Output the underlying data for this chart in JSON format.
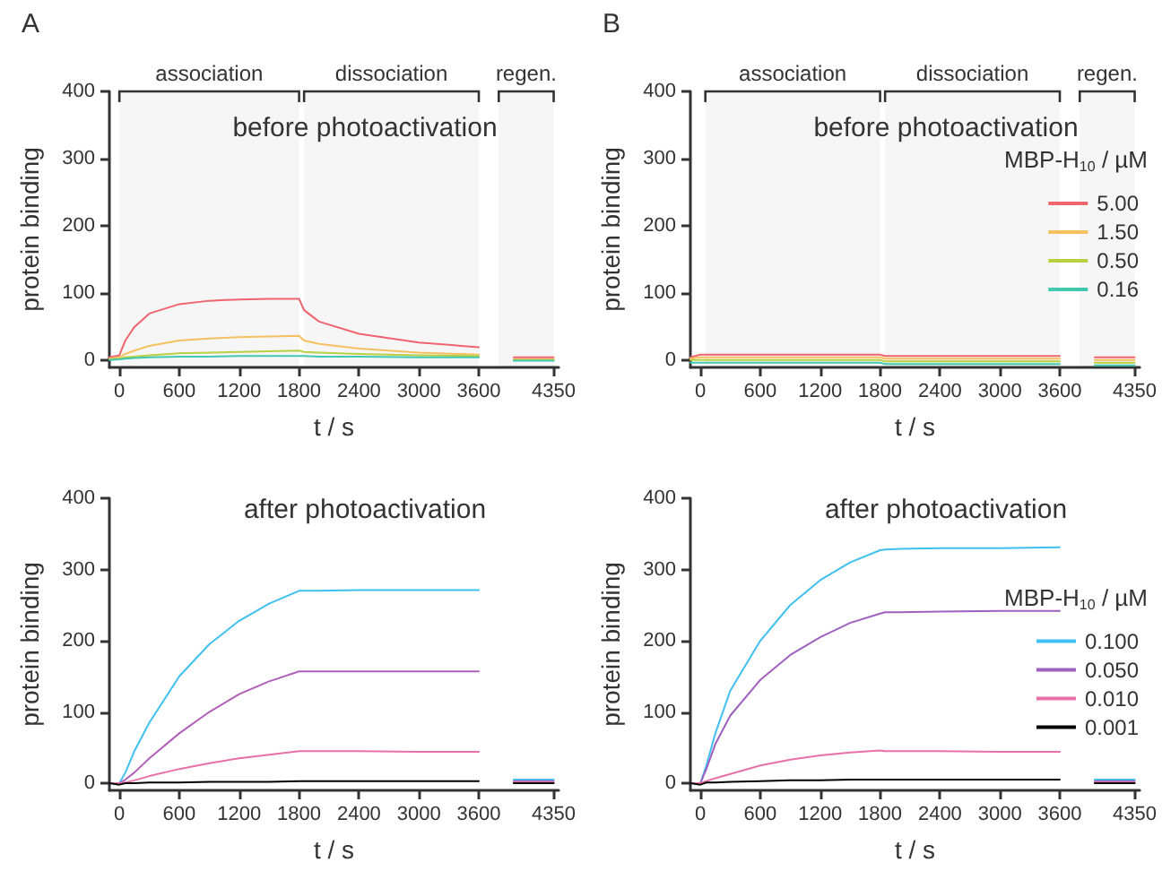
{
  "chart_data": [
    {
      "type": "line",
      "title": "before photoactivation",
      "annotations": [
        "A"
      ],
      "xlabel": "t / s",
      "ylabel": "protein binding",
      "x": [
        -100,
        0,
        60,
        150,
        300,
        600,
        900,
        1200,
        1500,
        1800,
        1850,
        2000,
        2400,
        3000,
        3600,
        3700,
        3950,
        4350
      ],
      "xlim": [
        -100,
        4400
      ],
      "xticks": [
        0,
        600,
        1200,
        1800,
        2400,
        3000,
        3600,
        4350
      ],
      "ylim": [
        -10,
        400
      ],
      "yticks": [
        0,
        100,
        200,
        300,
        400
      ],
      "grid": false,
      "legend": false,
      "line_style": "solid",
      "bands": [
        {
          "axis": "x",
          "from": 0,
          "to": 1800,
          "label": "association"
        },
        {
          "axis": "x",
          "from": 1850,
          "to": 3600,
          "label": "dissociation"
        },
        {
          "axis": "x",
          "from": 3800,
          "to": 4350,
          "label": "regen."
        }
      ],
      "series": [
        {
          "color": "#f0646e",
          "values": [
            5,
            8,
            30,
            50,
            70,
            84,
            89,
            91,
            92,
            92,
            75,
            58,
            40,
            27,
            20,
            null,
            5,
            5
          ]
        },
        {
          "color": "#f5c060",
          "values": [
            3,
            5,
            10,
            15,
            22,
            30,
            33,
            35,
            36,
            37,
            30,
            25,
            18,
            12,
            9,
            null,
            2,
            2
          ]
        },
        {
          "color": "#b8d040",
          "values": [
            2,
            3,
            5,
            6,
            8,
            11,
            12,
            13,
            14,
            15,
            13,
            12,
            10,
            8,
            7,
            null,
            1,
            1
          ]
        },
        {
          "color": "#40c8b0",
          "values": [
            1,
            2,
            3,
            4,
            5,
            6,
            6,
            7,
            7,
            7,
            7,
            6,
            6,
            5,
            5,
            null,
            0,
            0
          ]
        }
      ]
    },
    {
      "type": "line",
      "title": "before photoactivation",
      "annotations": [
        "B"
      ],
      "xlabel": "t / s",
      "ylabel": "protein binding",
      "legend_title": "MBP-H$_{10}$ / µM",
      "x": [
        -100,
        0,
        60,
        150,
        300,
        600,
        900,
        1200,
        1500,
        1800,
        1850,
        2000,
        2400,
        3000,
        3600,
        3700,
        3950,
        4350
      ],
      "xlim": [
        -100,
        4400
      ],
      "xticks": [
        0,
        600,
        1200,
        1800,
        2400,
        3000,
        3600,
        4350
      ],
      "ylim": [
        -10,
        400
      ],
      "yticks": [
        0,
        100,
        200,
        300,
        400
      ],
      "grid": false,
      "legend": "right",
      "line_style": "solid",
      "bands": [
        {
          "axis": "x",
          "from": 50,
          "to": 1800,
          "label": "association"
        },
        {
          "axis": "x",
          "from": 1850,
          "to": 3600,
          "label": "dissociation"
        },
        {
          "axis": "x",
          "from": 3800,
          "to": 4350,
          "label": "regen."
        }
      ],
      "series": [
        {
          "name": "5.00",
          "color": "#f0646e",
          "values": [
            5,
            9,
            9,
            9,
            9,
            9,
            9,
            9,
            9,
            9,
            7,
            7,
            7,
            7,
            7,
            null,
            5,
            5
          ]
        },
        {
          "name": "1.50",
          "color": "#f5c060",
          "values": [
            3,
            5,
            5,
            5,
            5,
            5,
            5,
            5,
            5,
            5,
            3,
            3,
            3,
            3,
            3,
            null,
            1,
            1
          ]
        },
        {
          "name": "0.50",
          "color": "#b8d040",
          "values": [
            1,
            1,
            1,
            1,
            1,
            1,
            1,
            1,
            1,
            1,
            -1,
            -1,
            -1,
            -1,
            -1,
            null,
            -3,
            -3
          ]
        },
        {
          "name": "0.16",
          "color": "#40c8b0",
          "values": [
            -3,
            -3,
            -3,
            -3,
            -3,
            -3,
            -3,
            -3,
            -3,
            -3,
            -5,
            -5,
            -5,
            -5,
            -5,
            null,
            -7,
            -7
          ]
        }
      ]
    },
    {
      "type": "line",
      "title": "after photoactivation",
      "xlabel": "t / s",
      "ylabel": "protein binding",
      "x": [
        -100,
        0,
        60,
        150,
        300,
        600,
        900,
        1200,
        1500,
        1800,
        1850,
        2000,
        2400,
        3000,
        3600,
        3700,
        3950,
        4350
      ],
      "xlim": [
        -100,
        4400
      ],
      "xticks": [
        0,
        600,
        1200,
        1800,
        2400,
        3000,
        3600,
        4350
      ],
      "ylim": [
        -10,
        400
      ],
      "yticks": [
        0,
        100,
        200,
        300,
        400
      ],
      "grid": false,
      "legend": false,
      "line_style": "solid",
      "series": [
        {
          "color": "#40c0f0",
          "values": [
            0,
            0,
            15,
            45,
            85,
            150,
            195,
            228,
            252,
            270,
            270,
            270,
            271,
            271,
            271,
            null,
            5,
            5
          ]
        },
        {
          "color": "#b060b8",
          "values": [
            0,
            0,
            5,
            15,
            35,
            70,
            100,
            125,
            143,
            157,
            157,
            157,
            157,
            157,
            157,
            null,
            3,
            3
          ]
        },
        {
          "color": "#e870a8",
          "values": [
            0,
            0,
            1,
            4,
            10,
            20,
            28,
            35,
            40,
            45,
            45,
            45,
            45,
            44,
            44,
            null,
            1,
            1
          ]
        },
        {
          "color": "#000000",
          "values": [
            0,
            -2,
            0,
            0,
            1,
            1,
            2,
            2,
            2,
            3,
            3,
            3,
            3,
            3,
            3,
            null,
            0,
            0
          ]
        }
      ]
    },
    {
      "type": "line",
      "title": "after photoactivation",
      "xlabel": "t / s",
      "ylabel": "protein binding",
      "legend_title": "MBP-H$_{10}$ / µM",
      "x": [
        -100,
        0,
        60,
        150,
        300,
        600,
        900,
        1200,
        1500,
        1800,
        1850,
        2000,
        2400,
        3000,
        3600,
        3700,
        3950,
        4350
      ],
      "xlim": [
        -100,
        4400
      ],
      "xticks": [
        0,
        600,
        1200,
        1800,
        2400,
        3000,
        3600,
        4350
      ],
      "ylim": [
        -10,
        400
      ],
      "yticks": [
        0,
        100,
        200,
        300,
        400
      ],
      "grid": false,
      "legend": "right",
      "line_style": "solid",
      "series": [
        {
          "name": "0.100",
          "color": "#40c0f0",
          "values": [
            0,
            0,
            25,
            70,
            130,
            200,
            250,
            285,
            310,
            327,
            328,
            329,
            330,
            330,
            331,
            null,
            5,
            5
          ]
        },
        {
          "name": "0.050",
          "color": "#a060c0",
          "values": [
            0,
            0,
            20,
            55,
            95,
            145,
            180,
            205,
            225,
            238,
            240,
            240,
            241,
            242,
            242,
            null,
            3,
            3
          ]
        },
        {
          "name": "0.010",
          "color": "#e870a8",
          "values": [
            0,
            0,
            3,
            7,
            13,
            25,
            33,
            39,
            43,
            46,
            45,
            45,
            45,
            44,
            44,
            null,
            1,
            1
          ]
        },
        {
          "name": "0.001",
          "color": "#000000",
          "values": [
            0,
            -2,
            1,
            1,
            2,
            3,
            4,
            4,
            5,
            5,
            5,
            5,
            5,
            5,
            5,
            null,
            0,
            0
          ]
        }
      ]
    }
  ]
}
